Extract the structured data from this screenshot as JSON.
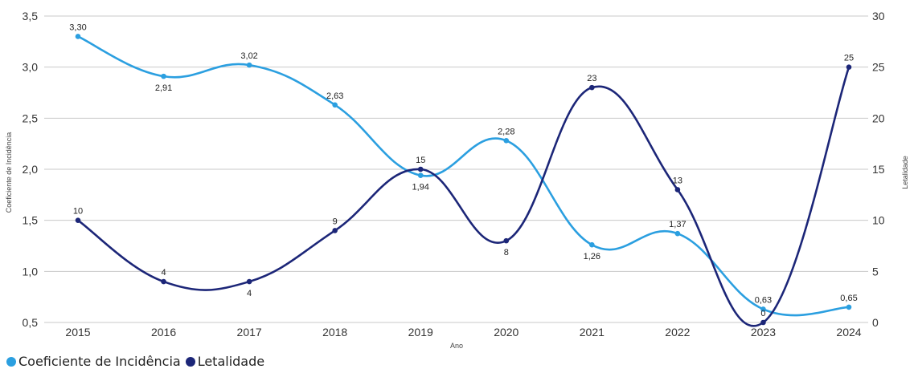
{
  "chart_data": {
    "type": "line",
    "x": [
      "2015",
      "2016",
      "2017",
      "2018",
      "2019",
      "2020",
      "2021",
      "2022",
      "2023",
      "2024"
    ],
    "xlabel": "Ano",
    "ylabel_left": "Coeficiente de Incidência",
    "ylabel_right": "Letalidade",
    "ylim_left": [
      0.5,
      3.5
    ],
    "ylim_right": [
      0,
      30
    ],
    "yticks_left": [
      "0,5",
      "1,0",
      "1,5",
      "2,0",
      "2,5",
      "3,0",
      "3,5"
    ],
    "yticks_right": [
      "0",
      "5",
      "10",
      "15",
      "20",
      "25",
      "30"
    ],
    "grid": true,
    "legend_position": "bottom-left",
    "series": [
      {
        "name": "Coeficiente de Incidência",
        "axis": "left",
        "color": "#2b9fe0",
        "values": [
          3.3,
          2.91,
          3.02,
          2.63,
          1.94,
          2.28,
          1.26,
          1.37,
          0.63,
          0.65
        ],
        "labels": [
          "3,30",
          "2,91",
          "3,02",
          "2,63",
          "1,94",
          "2,28",
          "1,26",
          "1,37",
          "0,63",
          "0,65"
        ]
      },
      {
        "name": "Letalidade",
        "axis": "right",
        "color": "#1c2678",
        "values": [
          10,
          4,
          4,
          9,
          15,
          8,
          23,
          13,
          0,
          25
        ],
        "labels": [
          "10",
          "4",
          "4",
          "9",
          "15",
          "8",
          "23",
          "13",
          "0",
          "25"
        ]
      }
    ]
  }
}
